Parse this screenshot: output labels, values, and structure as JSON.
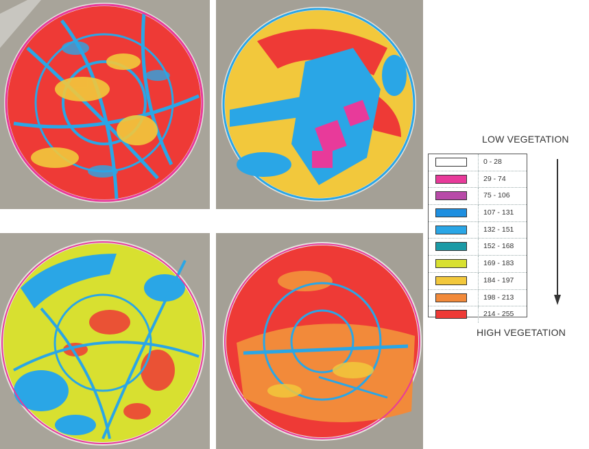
{
  "legend": {
    "top_label": "LOW VEGETATION",
    "bottom_label": "HIGH VEGETATION",
    "classes": [
      {
        "range": "0 - 28",
        "color": "#ffffff"
      },
      {
        "range": "29 - 74",
        "color": "#e83a9a"
      },
      {
        "range": "75 - 106",
        "color": "#b84aa8"
      },
      {
        "range": "107 - 131",
        "color": "#1e8fe0"
      },
      {
        "range": "132 - 151",
        "color": "#2aa6e6"
      },
      {
        "range": "152 - 168",
        "color": "#1b9aa6"
      },
      {
        "range": "169 - 183",
        "color": "#d8e030"
      },
      {
        "range": "184 - 197",
        "color": "#f2c83c"
      },
      {
        "range": "198 - 213",
        "color": "#f28a3a"
      },
      {
        "range": "214 - 255",
        "color": "#ee3a36"
      }
    ]
  },
  "panels": [
    {
      "name": "top-left",
      "dominant": "#ee3a36",
      "secondary": "#2aa6e6",
      "tertiary": "#f2c83c"
    },
    {
      "name": "top-right",
      "dominant": "#2aa6e6",
      "secondary": "#ee3a36",
      "tertiary": "#f2c83c"
    },
    {
      "name": "bottom-left",
      "dominant": "#d8e030",
      "secondary": "#2aa6e6",
      "tertiary": "#ee3a36"
    },
    {
      "name": "bottom-right",
      "dominant": "#ee3a36",
      "secondary": "#f28a3a",
      "tertiary": "#2aa6e6"
    }
  ]
}
